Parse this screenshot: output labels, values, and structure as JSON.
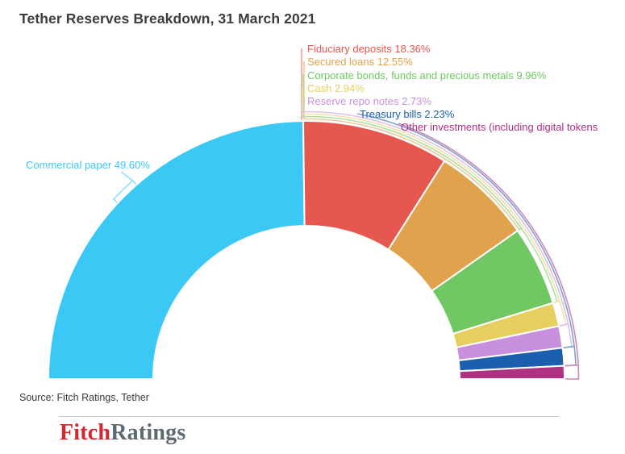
{
  "title": "Tether Reserves Breakdown, 31 March 2021",
  "source": "Source: Fitch Ratings, Tether",
  "logo": {
    "part1": "Fitch",
    "part2": "Ratings"
  },
  "chart_data": {
    "type": "pie",
    "subtype": "half-donut",
    "title": "Tether Reserves Breakdown, 31 March 2021",
    "unit": "%",
    "legend_position": "outside-with-leader-lines",
    "segments": [
      {
        "id": "commercial-paper",
        "label": "Commercial paper",
        "value": 49.6,
        "display": "Commercial paper 49.60%",
        "color": "#3cc8f4"
      },
      {
        "id": "fiduciary-deposits",
        "label": "Fiduciary deposits",
        "value": 18.36,
        "display": "Fiduciary deposits 18.36%",
        "color": "#e5574f"
      },
      {
        "id": "secured-loans",
        "label": "Secured loans",
        "value": 12.55,
        "display": "Secured loans 12.55%",
        "color": "#e1a24e"
      },
      {
        "id": "corporate-bonds",
        "label": "Corporate bonds, funds and precious metals",
        "value": 9.96,
        "display": "Corporate bonds, funds and precious metals 9.96%",
        "color": "#70c763"
      },
      {
        "id": "cash",
        "label": "Cash",
        "value": 2.94,
        "display": "Cash 2.94%",
        "color": "#e6cf5e"
      },
      {
        "id": "reserve-repo-notes",
        "label": "Reserve repo notes",
        "value": 2.73,
        "display": "Reserve repo notes 2.73%",
        "color": "#c890dc"
      },
      {
        "id": "treasury-bills",
        "label": "Treasury bills",
        "value": 2.23,
        "display": "Treasury bills 2.23%",
        "color": "#1b5fae"
      },
      {
        "id": "other-investments",
        "label": "Other investments (including digital tokens",
        "value": 1.63,
        "display": "Other investments (including digital tokens",
        "color": "#af3181"
      }
    ]
  }
}
